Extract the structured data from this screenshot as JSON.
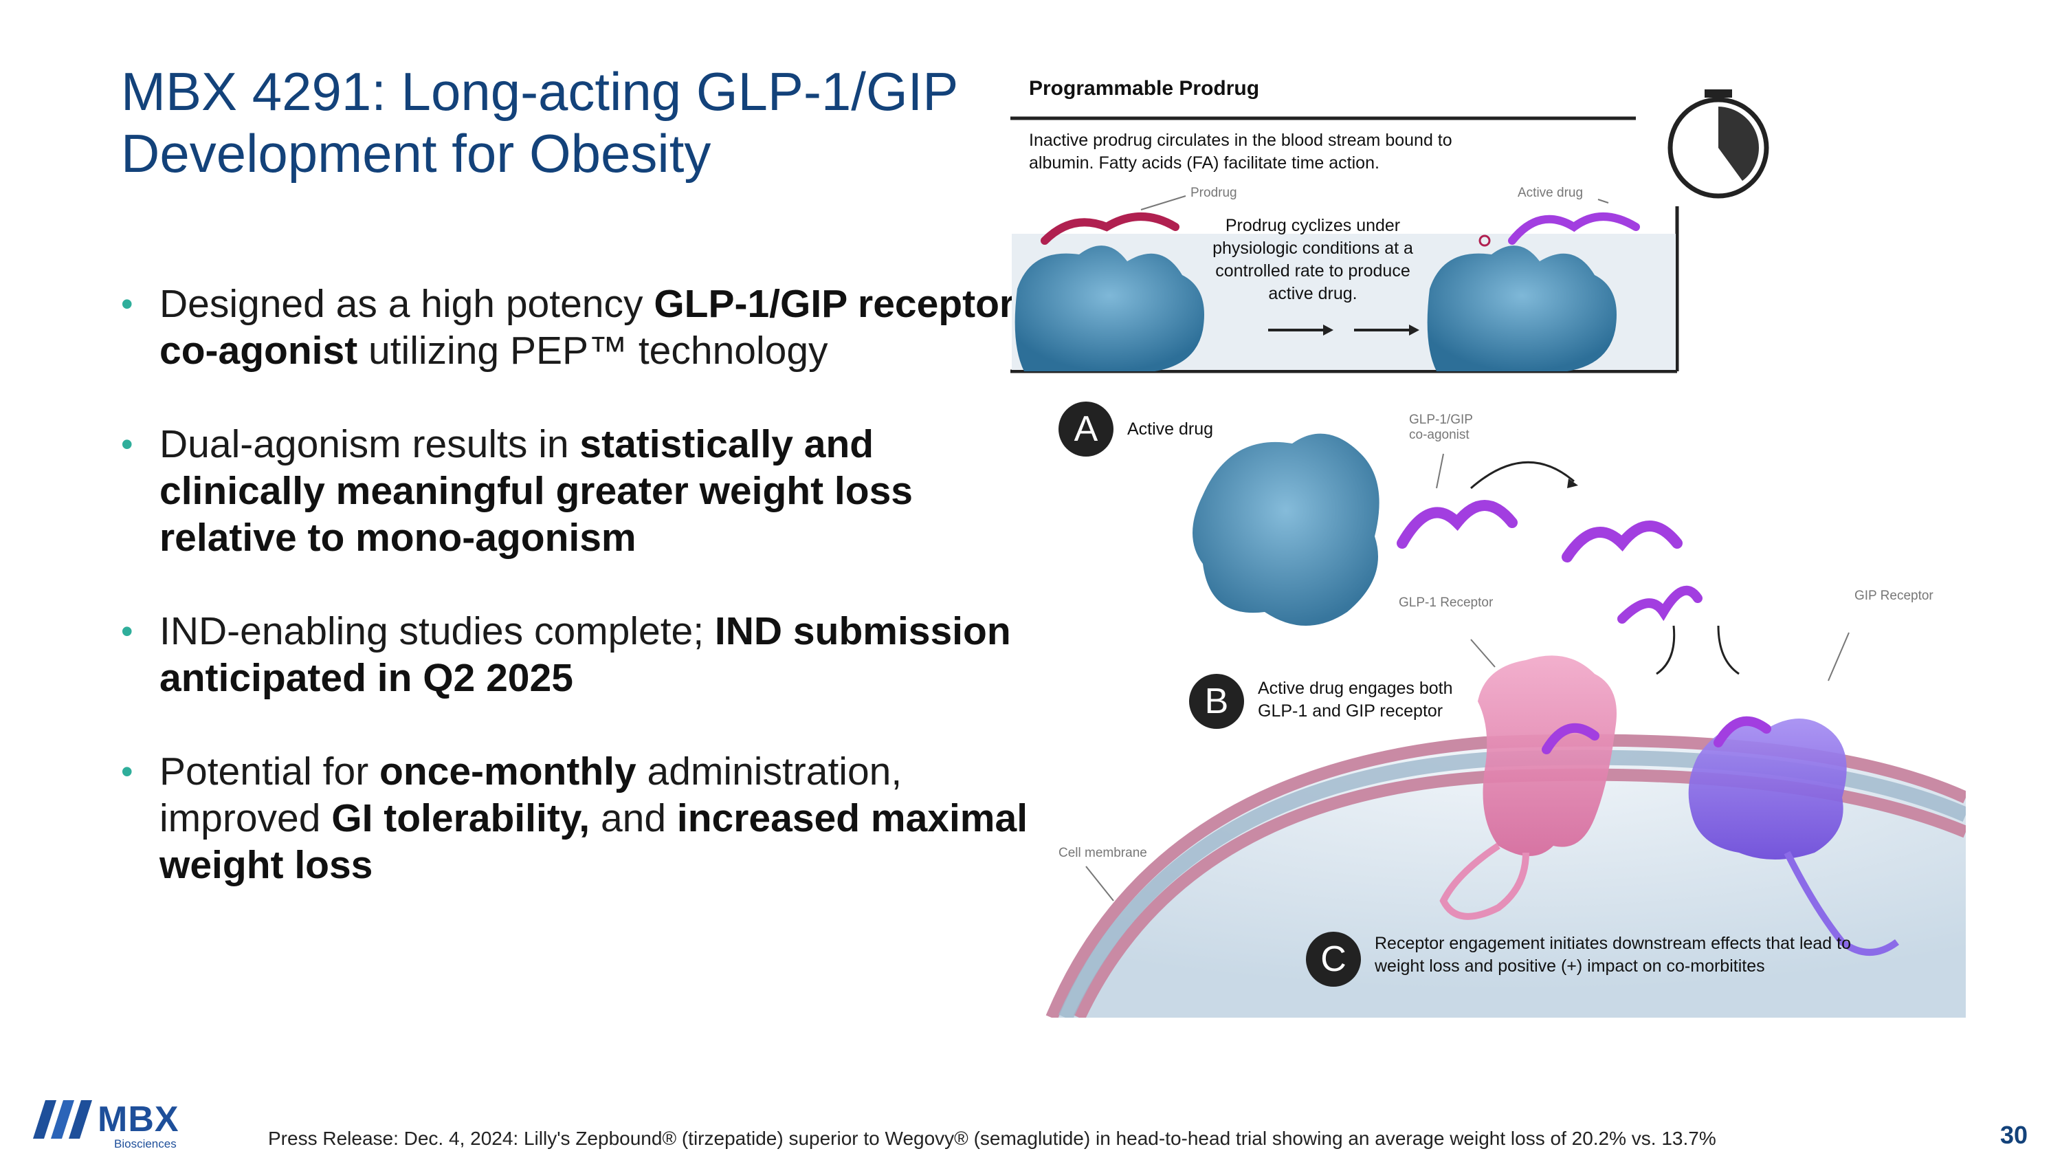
{
  "title": "MBX 4291: Long-acting GLP-1/GIP Development for Obesity",
  "bullets": [
    {
      "p1": "Designed as a high potency ",
      "b1": "GLP-1/GIP receptor co-agonist",
      "p2": " utilizing PEP™ technology",
      "b2": "",
      "p3": "",
      "b3": ""
    },
    {
      "p1": "Dual-agonism results in ",
      "b1": "statistically and clinically meaningful greater weight loss relative to mono-agonism",
      "p2": "",
      "b2": "",
      "p3": "",
      "b3": ""
    },
    {
      "p1": "IND-enabling studies complete; ",
      "b1": "IND submission anticipated in Q2 2025",
      "p2": "",
      "b2": "",
      "p3": "",
      "b3": ""
    },
    {
      "p1": "Potential for ",
      "b1": "once-monthly",
      "p2": " administration, improved ",
      "b2": "GI tolerability,",
      "p3": " and ",
      "b3": "increased maximal weight loss"
    }
  ],
  "figure": {
    "prodrug_heading": "Programmable Prodrug",
    "prodrug_desc": "Inactive prodrug circulates in the blood stream bound to albumin. Fatty acids (FA) facilitate time action.",
    "prodrug_label": "Prodrug",
    "active_drug_label": "Active drug",
    "cyclize_text": "Prodrug cyclizes under physiologic conditions at a controlled rate to produce active drug.",
    "step_a_letter": "A",
    "step_a_text": "Active drug",
    "coagonist_label": "GLP-1/GIP co-agonist",
    "glp1_receptor_label": "GLP-1 Receptor",
    "gip_receptor_label": "GIP Receptor",
    "step_b_letter": "B",
    "step_b_text": "Active drug engages both GLP-1 and GIP receptor",
    "cell_membrane_label": "Cell membrane",
    "step_c_letter": "C",
    "step_c_text": "Receptor engagement initiates downstream effects that lead to weight loss and positive (+) impact on co-morbitites"
  },
  "footer": "Press Release: Dec. 4, 2024: Lilly's Zepbound® (tirzepatide) superior to Wegovy® (semaglutide) in head-to-head trial showing an average weight loss of 20.2% vs. 13.7%",
  "page_number": "30",
  "logo": {
    "name": "MBX",
    "sub": "Biosciences"
  },
  "colors": {
    "title": "#13427a",
    "bullet": "#2fae9b",
    "receptor_glp1": "#e58fb8",
    "receptor_gip": "#8b6be8",
    "albumin": "#4a8fb8"
  }
}
